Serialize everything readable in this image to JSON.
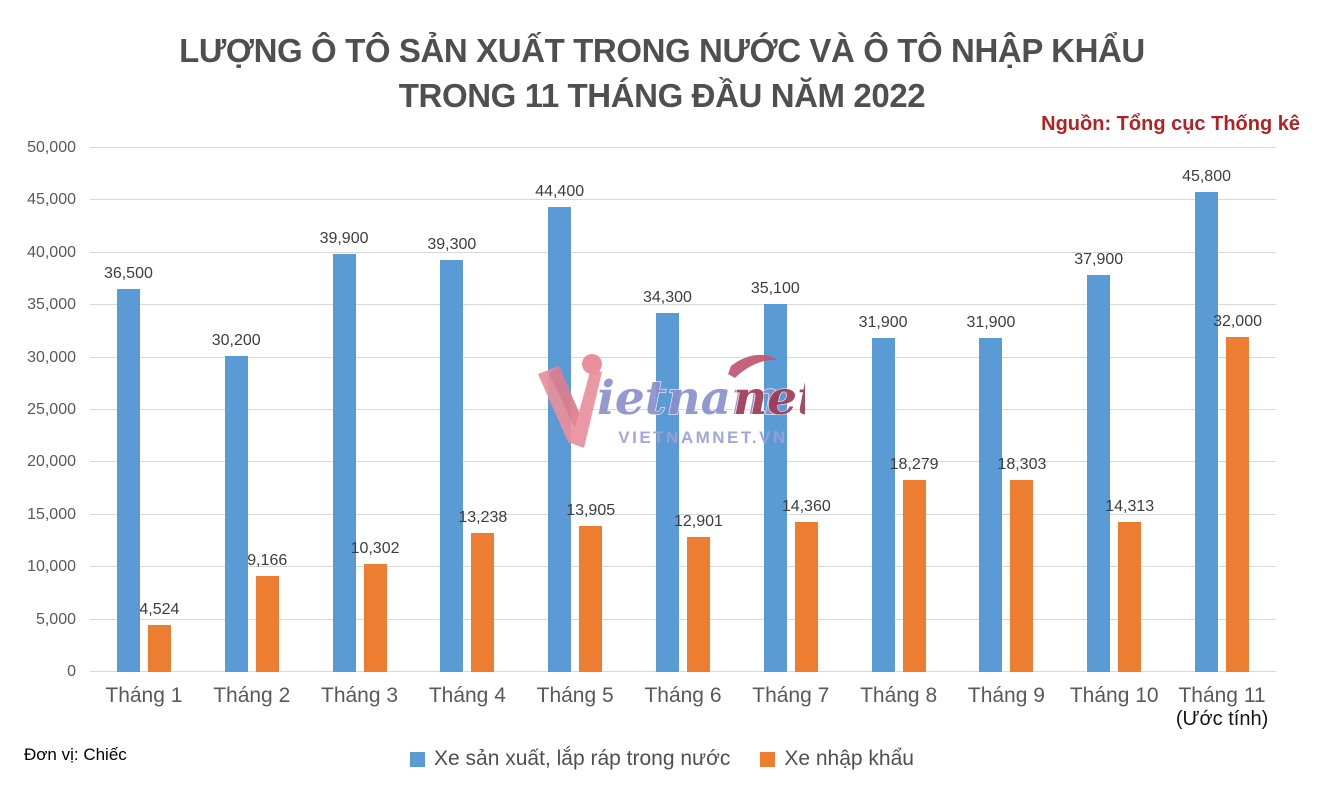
{
  "header": {
    "title_line1": "LƯỢNG Ô TÔ SẢN XUẤT TRONG NƯỚC VÀ Ô TÔ NHẬP KHẨU",
    "title_line2": "TRONG 11 THÁNG ĐẦU NĂM 2022",
    "source": "Nguồn: Tổng cục Thống kê"
  },
  "footer": {
    "unit": "Đơn vị: Chiếc"
  },
  "watermark": {
    "main_part1": "ietnam",
    "main_part2": "net",
    "sub": "VIETNAMNET.VN"
  },
  "chart_data": {
    "type": "bar",
    "title": "LƯỢNG Ô TÔ SẢN XUẤT TRONG NƯỚC VÀ Ô TÔ NHẬP KHẨU TRONG 11 THÁNG ĐẦU NĂM 2022",
    "source": "Nguồn: Tổng cục Thống kê",
    "unit": "Đơn vị: Chiếc",
    "categories": [
      "Tháng 1",
      "Tháng 2",
      "Tháng 3",
      "Tháng 4",
      "Tháng 5",
      "Tháng 6",
      "Tháng 7",
      "Tháng 8",
      "Tháng 9",
      "Tháng 10",
      "Tháng 11"
    ],
    "category_note": {
      "index": 10,
      "text": "(Ước tính)"
    },
    "series": [
      {
        "name": "Xe sản xuất, lắp ráp trong nước",
        "color": "#5B9BD5",
        "values": [
          36500,
          30200,
          39900,
          39300,
          44400,
          34300,
          35100,
          31900,
          31900,
          37900,
          45800
        ]
      },
      {
        "name": "Xe nhập khẩu",
        "color": "#ED7D31",
        "values": [
          4524,
          9166,
          10302,
          13238,
          13905,
          12901,
          14360,
          18279,
          18303,
          14313,
          32000
        ]
      }
    ],
    "xlabel": "",
    "ylabel": "",
    "ylim": [
      0,
      50000
    ],
    "ytick_step": 5000,
    "grid": true,
    "gridline_color": "#d9d9d9",
    "legend_position": "bottom"
  }
}
